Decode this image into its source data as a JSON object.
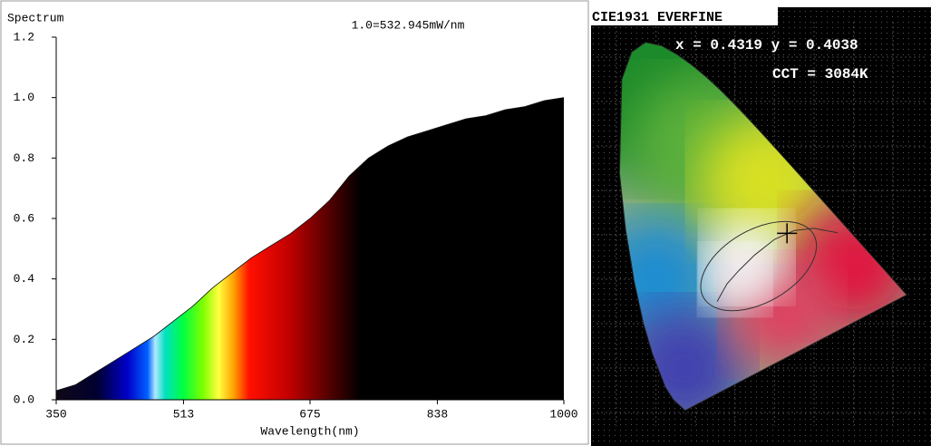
{
  "chart_data": [
    {
      "type": "area",
      "title": "1.0=532.945mW/nm",
      "y_label": "Spectrum",
      "x_label": "Wavelength(nm)",
      "x": [
        350,
        375,
        400,
        425,
        450,
        475,
        500,
        525,
        550,
        575,
        600,
        625,
        650,
        675,
        700,
        725,
        750,
        775,
        800,
        825,
        850,
        875,
        900,
        925,
        950,
        975,
        1000
      ],
      "values": [
        0.03,
        0.05,
        0.09,
        0.13,
        0.17,
        0.21,
        0.26,
        0.31,
        0.37,
        0.42,
        0.47,
        0.51,
        0.55,
        0.6,
        0.66,
        0.74,
        0.8,
        0.84,
        0.87,
        0.89,
        0.91,
        0.93,
        0.94,
        0.96,
        0.97,
        0.99,
        1.0
      ],
      "xlim": [
        350,
        1000
      ],
      "xticks": [
        350,
        513,
        675,
        838,
        1000
      ],
      "ylim": [
        0,
        1.2
      ],
      "yticks": [
        {
          "value": 0,
          "label": "0.0"
        },
        0.2,
        0.4,
        0.6,
        0.8,
        {
          "value": 1,
          "label": "1.0"
        },
        1.2
      ]
    },
    {
      "type": "cie",
      "title": "CIE1931 EVERFINE",
      "annotations": [
        "x = 0.4319 y = 0.4038",
        "CCT = 3084K"
      ],
      "x": [
        0.4319
      ],
      "values": [
        0.4038
      ],
      "xlim": [
        -0.05,
        0.78
      ],
      "ylim": [
        -0.03,
        0.88
      ]
    }
  ]
}
